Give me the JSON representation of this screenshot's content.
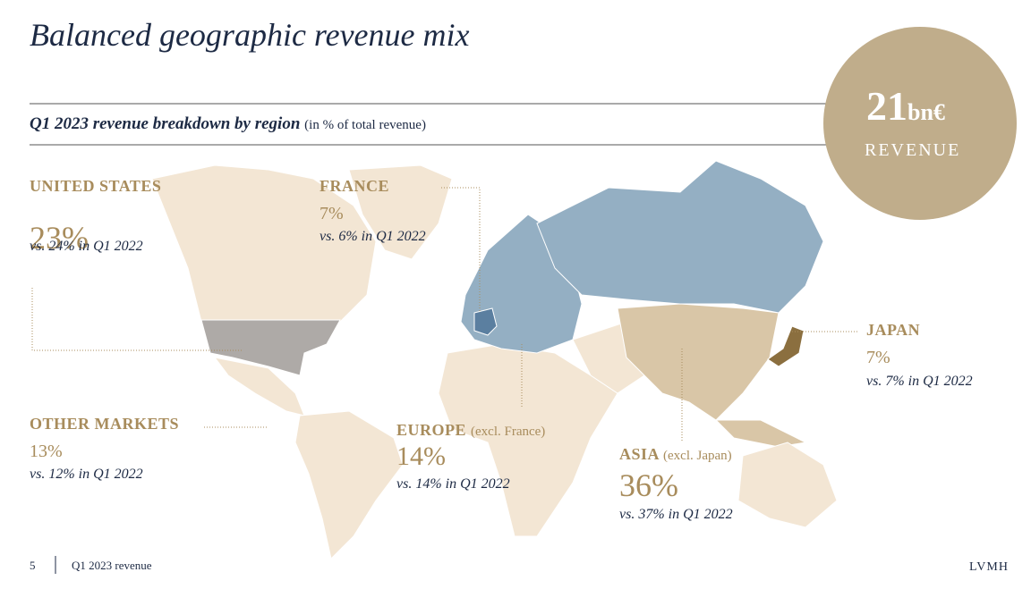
{
  "header": {
    "title": "Balanced geographic revenue mix",
    "subtitle": "Q1 2023 revenue breakdown by region",
    "subtitle_note": "(in % of total revenue)"
  },
  "revenue": {
    "amount": "21",
    "unit": "bn€",
    "label": "REVENUE"
  },
  "regions": [
    {
      "name": "UNITED STATES",
      "share": "23%",
      "comparison": "vs. 24% in Q1 2022"
    },
    {
      "name": "FRANCE",
      "share": "7%",
      "comparison": "vs. 6% in Q1 2022"
    },
    {
      "name": "JAPAN",
      "share": "7%",
      "comparison": "vs. 7% in Q1 2022"
    },
    {
      "name": "OTHER MARKETS",
      "share": "13%",
      "comparison": "vs. 12% in Q1 2022"
    },
    {
      "name": "EUROPE",
      "qualifier": "(excl. France)",
      "share": "14%",
      "comparison": "vs. 14% in Q1 2022"
    },
    {
      "name": "ASIA",
      "qualifier": "(excl. Japan)",
      "share": "36%",
      "comparison": "vs. 37% in Q1 2022"
    }
  ],
  "footer": {
    "page": "5",
    "text": "Q1 2023 revenue",
    "brand": "LVMH"
  }
}
